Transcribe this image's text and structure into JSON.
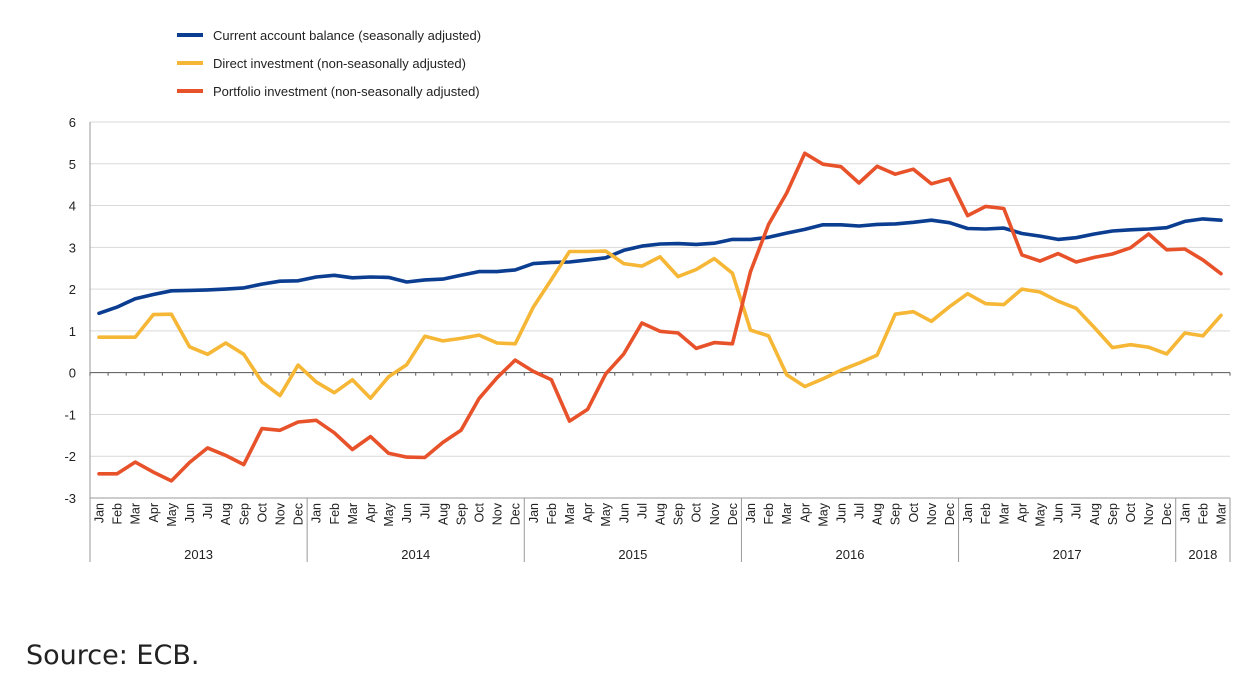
{
  "chart_data": {
    "type": "line",
    "title": "",
    "xlabel": "",
    "ylabel": "",
    "ylim": [
      -3,
      6
    ],
    "yticks": [
      6,
      5,
      4,
      3,
      2,
      1,
      0,
      -1,
      -2,
      -3
    ],
    "grid": true,
    "legend_position": "top-left",
    "years": [
      {
        "label": "2013",
        "months": 12
      },
      {
        "label": "2014",
        "months": 12
      },
      {
        "label": "2015",
        "months": 12
      },
      {
        "label": "2016",
        "months": 12
      },
      {
        "label": "2017",
        "months": 12
      },
      {
        "label": "2018",
        "months": 3
      }
    ],
    "month_labels": [
      "Jan",
      "Feb",
      "Mar",
      "Apr",
      "May",
      "Jun",
      "Jul",
      "Aug",
      "Sep",
      "Oct",
      "Nov",
      "Dec"
    ],
    "series": [
      {
        "name": "Current account balance (seasonally adjusted)",
        "color": "#0b3d91",
        "values": [
          1.42,
          1.57,
          1.77,
          1.87,
          1.96,
          1.97,
          1.98,
          2.0,
          2.03,
          2.12,
          2.19,
          2.2,
          2.29,
          2.33,
          2.27,
          2.29,
          2.28,
          2.17,
          2.22,
          2.24,
          2.33,
          2.42,
          2.42,
          2.46,
          2.61,
          2.64,
          2.65,
          2.7,
          2.75,
          2.93,
          3.03,
          3.08,
          3.09,
          3.07,
          3.1,
          3.19,
          3.19,
          3.24,
          3.34,
          3.43,
          3.54,
          3.54,
          3.51,
          3.55,
          3.56,
          3.6,
          3.65,
          3.59,
          3.45,
          3.44,
          3.46,
          3.33,
          3.27,
          3.19,
          3.23,
          3.32,
          3.39,
          3.42,
          3.44,
          3.47,
          3.62,
          3.68,
          3.65
        ]
      },
      {
        "name": "Direct investment (non-seasonally adjusted)",
        "color": "#f5b735",
        "values": [
          0.85,
          0.85,
          0.85,
          1.39,
          1.4,
          0.62,
          0.44,
          0.71,
          0.44,
          -0.22,
          -0.55,
          0.18,
          -0.22,
          -0.48,
          -0.17,
          -0.61,
          -0.1,
          0.19,
          0.87,
          0.76,
          0.82,
          0.9,
          0.71,
          0.69,
          1.57,
          2.23,
          2.9,
          2.9,
          2.91,
          2.61,
          2.55,
          2.77,
          2.3,
          2.47,
          2.73,
          2.38,
          1.02,
          0.88,
          -0.05,
          -0.33,
          -0.15,
          0.06,
          0.23,
          0.42,
          1.4,
          1.46,
          1.23,
          1.58,
          1.89,
          1.65,
          1.63,
          2.0,
          1.93,
          1.71,
          1.54,
          1.08,
          0.6,
          0.67,
          0.61,
          0.45,
          0.95,
          0.88,
          1.37
        ]
      },
      {
        "name": "Portfolio investment (non-seasonally adjusted)",
        "color": "#e8522a",
        "values": [
          -2.42,
          -2.42,
          -2.14,
          -2.38,
          -2.59,
          -2.15,
          -1.8,
          -1.98,
          -2.2,
          -1.34,
          -1.38,
          -1.18,
          -1.14,
          -1.44,
          -1.84,
          -1.53,
          -1.93,
          -2.02,
          -2.03,
          -1.67,
          -1.38,
          -0.62,
          -0.12,
          0.3,
          0.03,
          -0.17,
          -1.16,
          -0.88,
          -0.03,
          0.45,
          1.19,
          0.99,
          0.95,
          0.58,
          0.72,
          0.69,
          2.42,
          3.55,
          4.3,
          5.25,
          4.99,
          4.93,
          4.54,
          4.94,
          4.75,
          4.87,
          4.52,
          4.64,
          3.76,
          3.98,
          3.93,
          2.82,
          2.67,
          2.85,
          2.65,
          2.76,
          2.84,
          2.99,
          3.32,
          2.94,
          2.96,
          2.7,
          2.37
        ]
      }
    ]
  },
  "source_text": "Source: ECB."
}
